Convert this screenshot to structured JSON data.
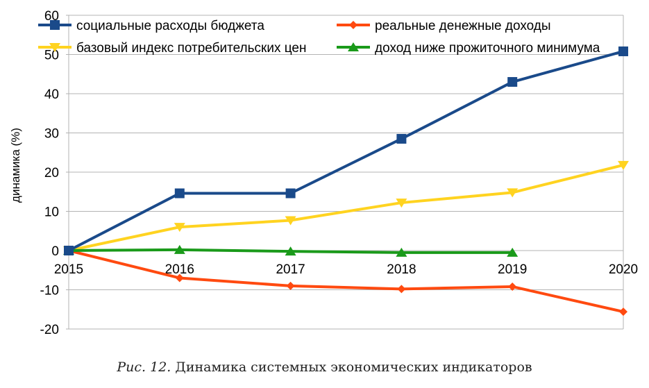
{
  "chart_data": {
    "type": "line",
    "title": "",
    "xlabel": "",
    "ylabel": "динамика (%)",
    "categories": [
      "2015",
      "2016",
      "2017",
      "2018",
      "2019",
      "2020"
    ],
    "ylim": [
      -20,
      60
    ],
    "yticks": [
      -20,
      -10,
      0,
      10,
      20,
      30,
      40,
      50,
      60
    ],
    "grid": true,
    "legend_position": "top",
    "series": [
      {
        "name": "социальные расходы бюджета",
        "color": "#1a4a8a",
        "marker": "square",
        "values": [
          0,
          14.6,
          14.6,
          28.5,
          43,
          50.8
        ]
      },
      {
        "name": "реальные денежные доходы",
        "color": "#ff4a10",
        "marker": "diamond",
        "values": [
          0,
          -7,
          -9,
          -9.8,
          -9.2,
          -15.6
        ]
      },
      {
        "name": "базовый индекс потребительских цен",
        "color": "#ffd320",
        "marker": "triangle-down",
        "values": [
          0,
          6,
          7.7,
          12.2,
          14.8,
          21.8
        ]
      },
      {
        "name": "доход ниже прожиточного минимума",
        "color": "#1a9a1a",
        "marker": "triangle-up",
        "values": [
          0,
          0.2,
          -0.2,
          -0.5,
          -0.5,
          null
        ]
      }
    ]
  },
  "caption": {
    "label": "Рис. 12.",
    "text": " Динамика системных экономических индикаторов"
  }
}
